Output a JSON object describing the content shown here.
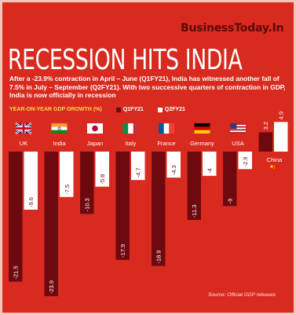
{
  "brand": "BusinessToday.In",
  "title": "RECESSION HITS INDIA",
  "intro": "After a -23.9% contraction in April – June (Q1FY21), India has witnessed another fall of 7.5% in July – September (Q2FY21). With two successive quarters of contraction in GDP, India is now officially in recession",
  "source": "Source: Official GDP releases",
  "colors": {
    "background": "#d92a1f",
    "q1": "#6e0a0f",
    "q2": "#ffffff",
    "accent": "#ffd34d"
  },
  "chart_data": {
    "type": "bar",
    "title": "YEAR-ON-YEAR GDP GROWTH (%)",
    "categories": [
      "UK",
      "India",
      "Japan",
      "Italy",
      "France",
      "Germany",
      "USA",
      "China"
    ],
    "flags": [
      "uk-flag",
      "india-flag",
      "japan-flag",
      "italy-flag",
      "france-flag",
      "germany-flag",
      "usa-flag",
      "china-flag"
    ],
    "series": [
      {
        "name": "Q1FY21",
        "values": [
          -21.5,
          -23.9,
          -10.3,
          -17.9,
          -18.9,
          -11.3,
          -9,
          3.2
        ]
      },
      {
        "name": "Q2FY21",
        "values": [
          -9.6,
          -7.5,
          -5.8,
          -4.7,
          -4.3,
          -4,
          -2.9,
          4.9
        ]
      }
    ],
    "value_labels": {
      "Q1FY21": [
        "-21.5",
        "-23.9",
        "-10.3",
        "-17.9",
        "-18.9",
        "-11.3",
        "-9",
        "3.2"
      ],
      "Q2FY21": [
        "-9.6",
        "-7.5",
        "-5.8",
        "-4.7",
        "-4.3",
        "-4",
        "-2.9",
        "4.9"
      ]
    },
    "ylim": [
      -23.9,
      4.9
    ],
    "legend_position": "top-left"
  }
}
